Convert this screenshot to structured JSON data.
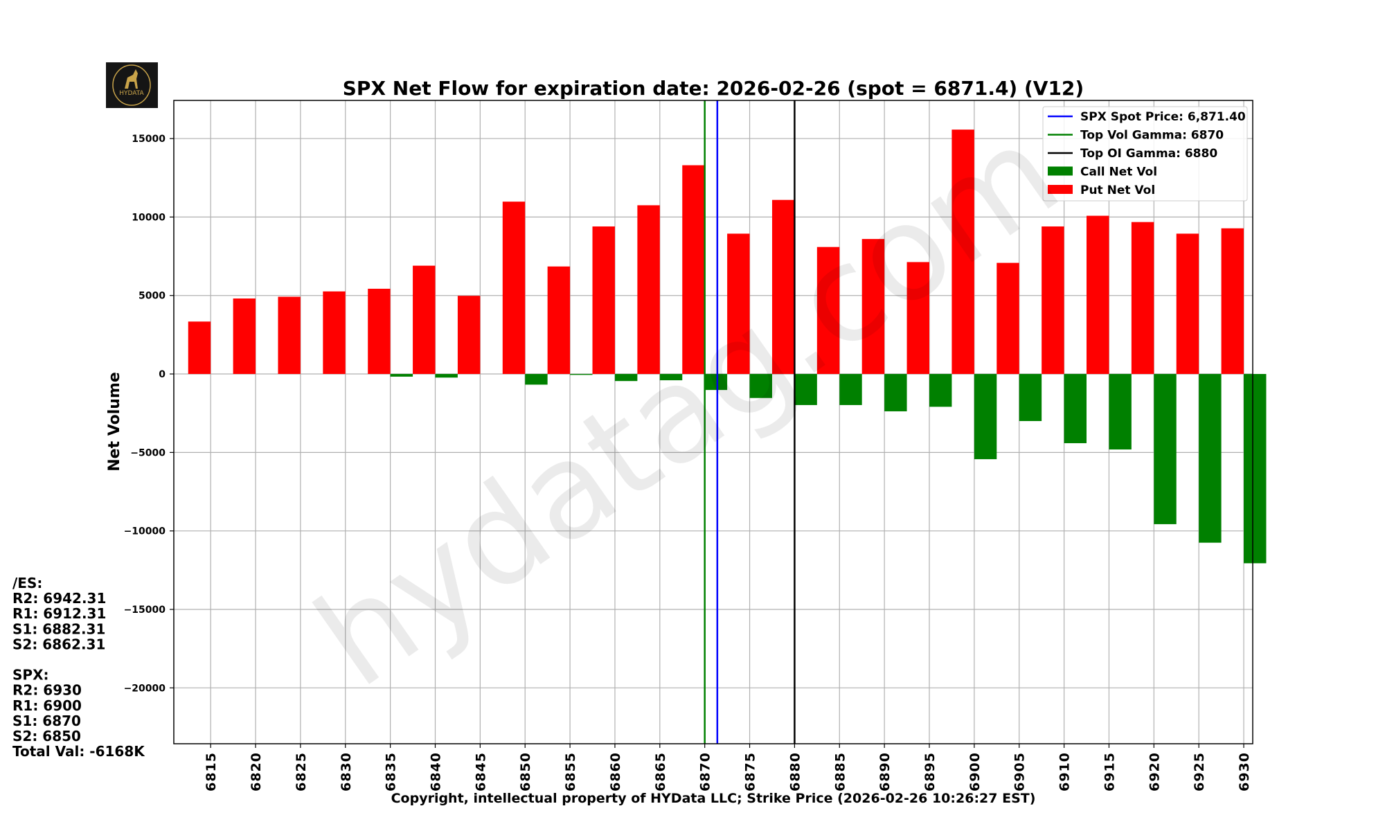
{
  "chart_data": {
    "type": "bar",
    "title": "SPX Net Flow for expiration date: 2026-02-26 (spot = 6871.4) (V12)",
    "xlabel": "Copyright, intellectual property of HYData LLC; Strike Price (2026-02-26 10:26:27 EST)",
    "ylabel": "Net Volume",
    "xlim": [
      6810.9,
      6931.0
    ],
    "ylim": [
      -23560,
      17430
    ],
    "yticks": [
      -20000,
      -15000,
      -10000,
      -5000,
      0,
      5000,
      10000,
      15000
    ],
    "ytick_labels": [
      "−20000",
      "−15000",
      "−10000",
      "−5000",
      "0",
      "5000",
      "10000",
      "15000"
    ],
    "grid": true,
    "legend_position": "top-right",
    "categories": [
      6815,
      6820,
      6825,
      6830,
      6835,
      6840,
      6845,
      6850,
      6855,
      6860,
      6865,
      6870,
      6875,
      6880,
      6885,
      6890,
      6895,
      6900,
      6905,
      6910,
      6915,
      6920,
      6925,
      6930
    ],
    "category_labels": [
      "6815",
      "6820",
      "6825",
      "6830",
      "6835",
      "6840",
      "6845",
      "6850",
      "6855",
      "6860",
      "6865",
      "6870",
      "6875",
      "6880",
      "6885",
      "6890",
      "6895",
      "6900",
      "6905",
      "6910",
      "6915",
      "6920",
      "6925",
      "6930"
    ],
    "series": [
      {
        "name": "Call Net Vol",
        "color": "#008000",
        "position": "right-of-strike",
        "values": [
          0,
          0,
          0,
          0,
          -170,
          -230,
          0,
          -680,
          -60,
          -450,
          -400,
          -1020,
          -1530,
          -1980,
          -1980,
          -2380,
          -2090,
          -5430,
          -3000,
          -4410,
          -4810,
          -9570,
          -10750,
          -12060
        ]
      },
      {
        "name": "Put Net Vol",
        "color": "#ff0000",
        "position": "left-of-strike",
        "values": [
          3340,
          4810,
          4920,
          5260,
          5430,
          6900,
          4980,
          10980,
          6850,
          9400,
          10750,
          13300,
          8940,
          11090,
          8090,
          8600,
          7130,
          15570,
          7080,
          9400,
          10080,
          9680,
          8940,
          9280
        ]
      }
    ],
    "vlines": [
      {
        "name": "SPX Spot Price: 6,871.40",
        "x": 6871.4,
        "color": "#0000ff"
      },
      {
        "name": "Top Vol Gamma: 6870",
        "x": 6870,
        "color": "#008000"
      },
      {
        "name": "Top OI Gamma: 6880",
        "x": 6880,
        "color": "#000000"
      }
    ],
    "legend": [
      "SPX Spot Price: 6,871.40",
      "Top Vol Gamma: 6870",
      "Top OI Gamma: 6880",
      "Call Net Vol",
      "Put Net Vol"
    ]
  },
  "side_panel": {
    "lines": [
      "/ES:",
      "R2: 6942.31",
      "R1: 6912.31",
      "S1: 6882.31",
      "S2: 6862.31",
      "",
      "SPX:",
      "R2: 6930",
      "R1: 6900",
      "S1: 6870",
      "S2: 6850",
      "Total Val: -6168K"
    ]
  },
  "logo": {
    "text": "HYDATA"
  },
  "watermark": {
    "text": "hydatag.com"
  }
}
